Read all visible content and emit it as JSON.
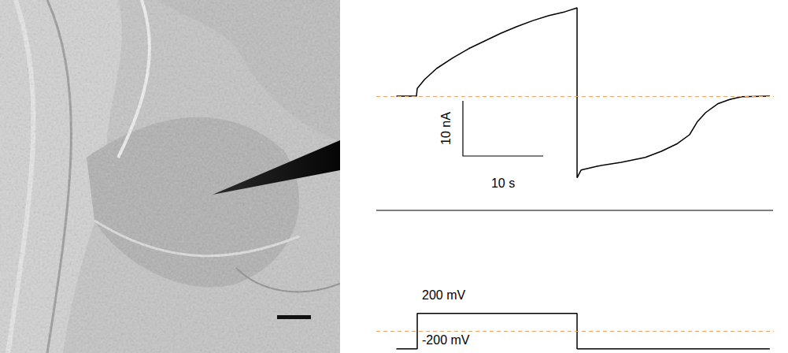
{
  "chart_data": [
    {
      "type": "line",
      "x": [
        0,
        2.5,
        2.6,
        3.5,
        5,
        7,
        9,
        11,
        13,
        15,
        17,
        19,
        21,
        22.5,
        22.5,
        23,
        25,
        28,
        31,
        33,
        35,
        36.5,
        37.5,
        38.5,
        40,
        41.5,
        43,
        46.5
      ],
      "values": [
        0,
        0,
        1.4,
        3.0,
        5.0,
        6.9,
        8.6,
        10.0,
        11.4,
        12.6,
        13.7,
        14.6,
        15.3,
        16.0,
        -14.8,
        -13.4,
        -12.7,
        -12.0,
        -11.1,
        -10.0,
        -8.6,
        -7.0,
        -4.6,
        -3.0,
        -1.4,
        -0.6,
        -0.1,
        0
      ],
      "color": "#000000",
      "xlim": [
        -2.5,
        47
      ],
      "ylim": [
        -20,
        17
      ],
      "tick_labels": false,
      "reference_line": 0,
      "scale_bar": {
        "x": 10,
        "x_label": "10 s",
        "y": 10,
        "y_label": "10 nA"
      }
    },
    {
      "type": "line",
      "x": [
        0,
        2.6,
        2.6,
        22.5,
        22.5,
        46.5
      ],
      "values": [
        -200,
        -200,
        200,
        200,
        -200,
        -200
      ],
      "color": "#000000",
      "xlim": [
        -2.5,
        47
      ],
      "ylim": [
        -230,
        600
      ],
      "tick_labels": false,
      "reference_line": 0,
      "levels": [
        {
          "value": 200,
          "label": "200 mV"
        },
        {
          "value": -200,
          "label": "-200 mV"
        }
      ]
    }
  ]
}
